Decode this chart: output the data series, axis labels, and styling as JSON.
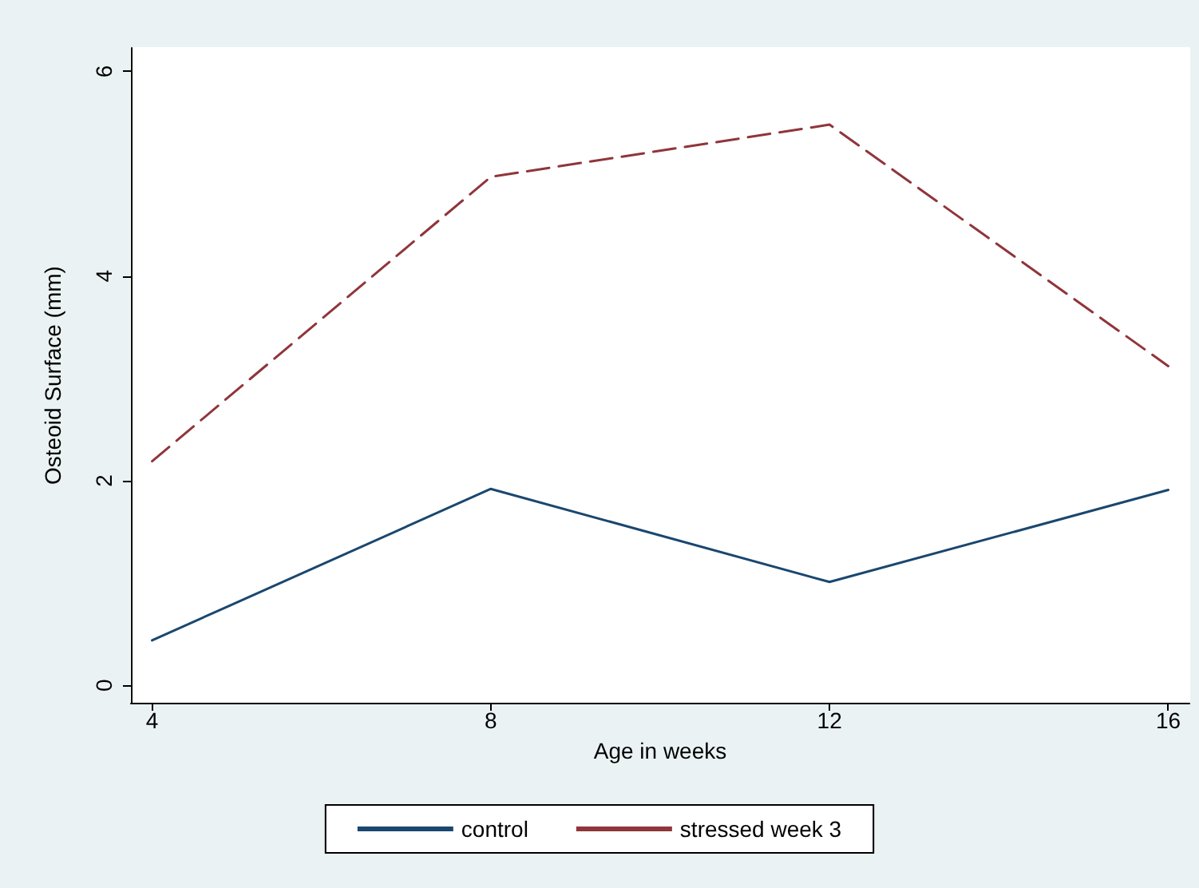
{
  "chart_data": {
    "type": "line",
    "xlabel": "Age in weeks",
    "ylabel": "Osteoid Surface (mm)",
    "x": [
      4,
      8,
      12,
      16
    ],
    "series": [
      {
        "name": "control",
        "color": "#1a476f",
        "line_style": "solid",
        "values": [
          0.44,
          1.92,
          1.01,
          1.91
        ]
      },
      {
        "name": "stressed week 3",
        "color": "#90353b",
        "line_style": "dashed",
        "values": [
          2.19,
          4.97,
          5.48,
          3.12
        ]
      }
    ],
    "xlim": [
      3.75,
      16.25
    ],
    "xticks": [
      4,
      8,
      12,
      16
    ],
    "ylim": [
      -0.17,
      6.23
    ],
    "yticks": [
      0,
      2,
      4,
      6
    ],
    "grid": false,
    "legend": "bottom",
    "marker": "none"
  }
}
